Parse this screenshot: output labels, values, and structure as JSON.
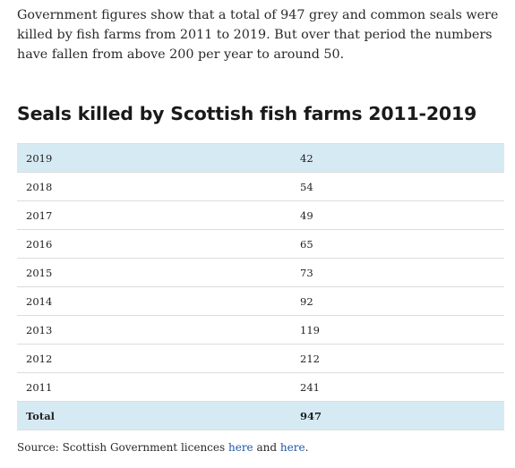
{
  "intro": "Government figures show that a total of 947 grey and common seals were killed by fish farms from 2011 to 2019. But over that period the numbers have fallen from above 200 per year to around 50.",
  "heading": "Seals killed by Scottish fish farms 2011-2019",
  "table": {
    "rows": [
      {
        "year": "2019",
        "value": "42"
      },
      {
        "year": "2018",
        "value": "54"
      },
      {
        "year": "2017",
        "value": "49"
      },
      {
        "year": "2016",
        "value": "65"
      },
      {
        "year": "2015",
        "value": "73"
      },
      {
        "year": "2014",
        "value": "92"
      },
      {
        "year": "2013",
        "value": "119"
      },
      {
        "year": "2012",
        "value": "212"
      },
      {
        "year": "2011",
        "value": "241"
      }
    ],
    "total": {
      "label": "Total",
      "value": "947"
    }
  },
  "source": {
    "prefix": "Source: Scottish Government licences",
    "link1": "here",
    "joiner": "and",
    "link2": "here",
    "suffix": "."
  },
  "colors": {
    "highlight_row": "#d6eaf3",
    "link": "#1a56a8"
  }
}
